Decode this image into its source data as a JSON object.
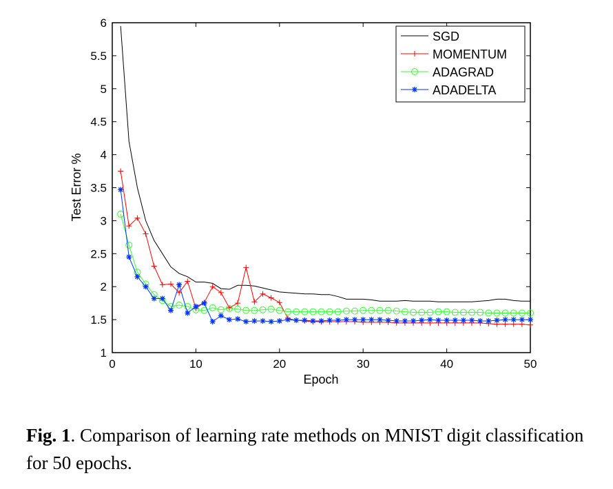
{
  "chart_data": {
    "type": "line",
    "xlabel": "Epoch",
    "ylabel": "Test Error %",
    "xlim": [
      0,
      50
    ],
    "ylim": [
      1,
      6
    ],
    "xticks": [
      "0",
      "10",
      "20",
      "30",
      "40",
      "50"
    ],
    "yticks": [
      "1",
      "1.5",
      "2",
      "2.5",
      "3",
      "3.5",
      "4",
      "4.5",
      "5",
      "5.5",
      "6"
    ],
    "legend_placement": "top-right",
    "x": [
      1,
      2,
      3,
      4,
      5,
      6,
      7,
      8,
      9,
      10,
      11,
      12,
      13,
      14,
      15,
      16,
      17,
      18,
      19,
      20,
      21,
      22,
      23,
      24,
      25,
      26,
      27,
      28,
      29,
      30,
      31,
      32,
      33,
      34,
      35,
      36,
      37,
      38,
      39,
      40,
      41,
      42,
      43,
      44,
      45,
      46,
      47,
      48,
      49,
      50
    ],
    "series": [
      {
        "name": "SGD",
        "color": "#000000",
        "marker": "none",
        "values": [
          5.95,
          4.2,
          3.5,
          3.0,
          2.7,
          2.5,
          2.3,
          2.2,
          2.15,
          2.07,
          2.07,
          2.05,
          1.97,
          1.96,
          2.02,
          2.02,
          2.01,
          1.98,
          1.95,
          1.92,
          1.91,
          1.9,
          1.89,
          1.89,
          1.88,
          1.88,
          1.85,
          1.81,
          1.81,
          1.81,
          1.8,
          1.78,
          1.78,
          1.78,
          1.79,
          1.78,
          1.78,
          1.78,
          1.77,
          1.77,
          1.77,
          1.77,
          1.77,
          1.78,
          1.79,
          1.81,
          1.81,
          1.79,
          1.78,
          1.78
        ]
      },
      {
        "name": "MOMENTUM",
        "color": "#ff0000",
        "marker": "plus",
        "values": [
          3.75,
          2.92,
          3.04,
          2.8,
          2.31,
          2.03,
          2.04,
          1.91,
          2.08,
          1.67,
          1.76,
          2.0,
          1.91,
          1.68,
          1.75,
          2.29,
          1.77,
          1.89,
          1.83,
          1.76,
          1.52,
          1.49,
          1.48,
          1.47,
          1.47,
          1.47,
          1.47,
          1.47,
          1.47,
          1.46,
          1.46,
          1.46,
          1.46,
          1.45,
          1.45,
          1.45,
          1.45,
          1.45,
          1.45,
          1.45,
          1.45,
          1.45,
          1.45,
          1.45,
          1.44,
          1.43,
          1.43,
          1.43,
          1.43,
          1.42
        ]
      },
      {
        "name": "ADAGRAD",
        "color": "#33ff33",
        "marker": "circle",
        "values": [
          3.1,
          2.63,
          2.22,
          2.04,
          1.88,
          1.79,
          1.7,
          1.72,
          1.7,
          1.65,
          1.64,
          1.68,
          1.65,
          1.67,
          1.66,
          1.64,
          1.64,
          1.65,
          1.66,
          1.64,
          1.62,
          1.62,
          1.62,
          1.62,
          1.62,
          1.62,
          1.62,
          1.63,
          1.63,
          1.64,
          1.64,
          1.64,
          1.64,
          1.63,
          1.62,
          1.61,
          1.61,
          1.61,
          1.62,
          1.62,
          1.61,
          1.61,
          1.61,
          1.61,
          1.6,
          1.6,
          1.6,
          1.6,
          1.6,
          1.6
        ]
      },
      {
        "name": "ADADELTA",
        "color": "#0033ff",
        "marker": "star",
        "values": [
          3.47,
          2.45,
          2.15,
          2.0,
          1.82,
          1.82,
          1.64,
          2.03,
          1.6,
          1.7,
          1.75,
          1.47,
          1.56,
          1.5,
          1.51,
          1.47,
          1.48,
          1.48,
          1.47,
          1.48,
          1.5,
          1.49,
          1.49,
          1.48,
          1.48,
          1.49,
          1.49,
          1.5,
          1.5,
          1.5,
          1.5,
          1.5,
          1.49,
          1.48,
          1.48,
          1.48,
          1.49,
          1.5,
          1.49,
          1.49,
          1.49,
          1.49,
          1.49,
          1.48,
          1.48,
          1.49,
          1.5,
          1.5,
          1.5,
          1.5
        ]
      }
    ]
  },
  "caption": {
    "label": "Fig. 1",
    "text": ". Comparison of learning rate methods on MNIST digit classification for 50 epochs."
  }
}
